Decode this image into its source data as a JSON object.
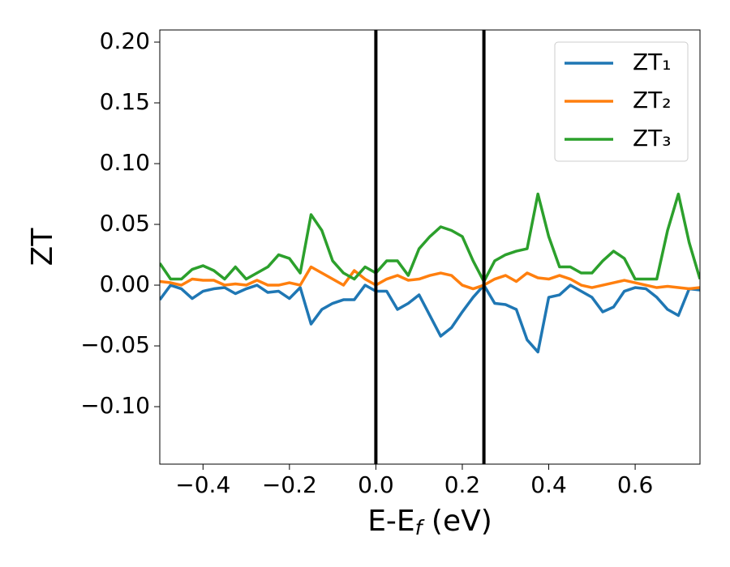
{
  "chart_data": {
    "type": "line",
    "ylabel": "ZT",
    "xlabel": [
      "E-E",
      "f",
      " (eV)"
    ],
    "x": [
      -0.5,
      -0.475,
      -0.45,
      -0.425,
      -0.4,
      -0.375,
      -0.35,
      -0.325,
      -0.3,
      -0.275,
      -0.25,
      -0.225,
      -0.2,
      -0.175,
      -0.15,
      -0.125,
      -0.1,
      -0.075,
      -0.05,
      -0.025,
      0.0,
      0.025,
      0.05,
      0.075,
      0.1,
      0.125,
      0.15,
      0.175,
      0.2,
      0.225,
      0.25,
      0.275,
      0.3,
      0.325,
      0.35,
      0.375,
      0.4,
      0.425,
      0.45,
      0.475,
      0.5,
      0.525,
      0.55,
      0.575,
      0.6,
      0.625,
      0.65,
      0.675,
      0.7,
      0.725,
      0.75
    ],
    "series": [
      {
        "name": "ZT₁",
        "color": "#1f77b4",
        "values": [
          -0.012,
          0.0,
          -0.003,
          -0.011,
          -0.005,
          -0.003,
          -0.002,
          -0.007,
          -0.003,
          0.0,
          -0.006,
          -0.005,
          -0.011,
          -0.002,
          -0.032,
          -0.02,
          -0.015,
          -0.012,
          -0.012,
          0.0,
          -0.005,
          -0.005,
          -0.02,
          -0.015,
          -0.008,
          -0.025,
          -0.042,
          -0.035,
          -0.022,
          -0.01,
          0.0,
          -0.015,
          -0.016,
          -0.02,
          -0.045,
          -0.055,
          -0.01,
          -0.008,
          0.0,
          -0.005,
          -0.01,
          -0.022,
          -0.018,
          -0.005,
          -0.002,
          -0.003,
          -0.01,
          -0.02,
          -0.025,
          -0.003,
          -0.004
        ]
      },
      {
        "name": "ZT₂",
        "color": "#ff7f0e",
        "values": [
          0.003,
          0.002,
          0.0,
          0.005,
          0.004,
          0.004,
          0.0,
          0.001,
          0.0,
          0.004,
          0.0,
          0.0,
          0.002,
          0.0,
          0.015,
          0.01,
          0.005,
          0.0,
          0.012,
          0.005,
          0.0,
          0.005,
          0.008,
          0.004,
          0.005,
          0.008,
          0.01,
          0.008,
          0.0,
          -0.003,
          0.0,
          0.005,
          0.008,
          0.003,
          0.01,
          0.006,
          0.005,
          0.008,
          0.005,
          0.0,
          -0.002,
          0.0,
          0.002,
          0.004,
          0.002,
          0.0,
          -0.002,
          -0.001,
          -0.002,
          -0.003,
          -0.002
        ]
      },
      {
        "name": "ZT₃",
        "color": "#2ca02c",
        "values": [
          0.018,
          0.005,
          0.005,
          0.013,
          0.016,
          0.012,
          0.005,
          0.015,
          0.005,
          0.01,
          0.015,
          0.025,
          0.022,
          0.01,
          0.058,
          0.045,
          0.02,
          0.01,
          0.005,
          0.015,
          0.01,
          0.02,
          0.02,
          0.008,
          0.03,
          0.04,
          0.048,
          0.045,
          0.04,
          0.02,
          0.003,
          0.02,
          0.025,
          0.028,
          0.03,
          0.075,
          0.04,
          0.015,
          0.015,
          0.01,
          0.01,
          0.02,
          0.028,
          0.022,
          0.005,
          0.005,
          0.005,
          0.045,
          0.075,
          0.035,
          0.005
        ]
      }
    ],
    "vlines": [
      0.0,
      0.25
    ],
    "vline_color": "#000000",
    "xlim": [
      -0.5,
      0.75
    ],
    "ylim": [
      -0.1473,
      0.21
    ],
    "xticks": [
      {
        "value": -0.4,
        "label": "−0.4"
      },
      {
        "value": -0.2,
        "label": "−0.2"
      },
      {
        "value": 0.0,
        "label": "0.0"
      },
      0.2,
      0.4,
      0.6
    ],
    "yticks": [
      {
        "value": -0.1,
        "label": "−0.10"
      },
      {
        "value": -0.05,
        "label": "−0.05"
      },
      {
        "value": 0.0,
        "label": "0.00"
      },
      0.05,
      {
        "value": 0.1,
        "label": "0.10"
      },
      0.15,
      {
        "value": 0.2,
        "label": "0.20"
      }
    ],
    "grid": false,
    "legend": "upper right"
  }
}
